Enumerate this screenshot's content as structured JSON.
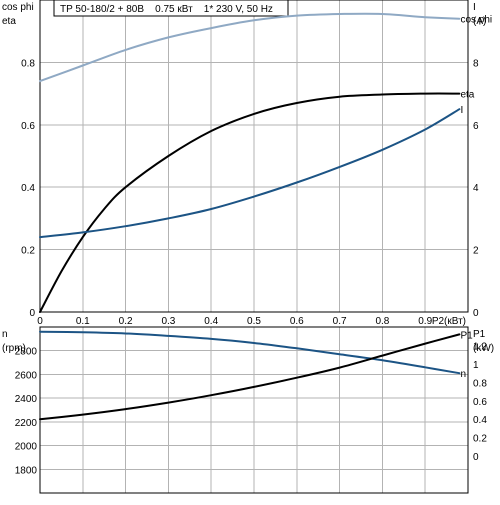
{
  "title": "TP 50-180/2 + 80B    0.75 кВт    1* 230 V, 50 Hz",
  "colors": {
    "cosphi": "#8fa9c4",
    "eta": "#000000",
    "current": "#1c5485",
    "speed": "#1c5485",
    "p1": "#000000",
    "grid": "#b3b3b3"
  },
  "chart_data": [
    {
      "type": "line",
      "x_label": "P2(кВт)",
      "x_ticks": [
        "0",
        "0.1",
        "0.2",
        "0.3",
        "0.4",
        "0.5",
        "0.6",
        "0.7",
        "0.8",
        "0.9"
      ],
      "x_range": [
        0,
        1.0
      ],
      "left_axis": {
        "labels": [
          "cos phi",
          "eta"
        ],
        "ticks": [
          "0",
          "0.2",
          "0.4",
          "0.6",
          "0.8"
        ],
        "range": [
          0,
          1.0
        ]
      },
      "right_axis": {
        "labels": [
          "I",
          "(A)"
        ],
        "ticks": [
          "0",
          "2",
          "4",
          "6",
          "8"
        ],
        "range": [
          0,
          10
        ]
      },
      "grid": true,
      "series": [
        {
          "name": "cos phi",
          "axis": "left",
          "x": [
            0,
            0.1,
            0.2,
            0.3,
            0.4,
            0.5,
            0.6,
            0.7,
            0.8,
            0.9,
            0.98
          ],
          "y": [
            0.74,
            0.79,
            0.84,
            0.88,
            0.91,
            0.935,
            0.95,
            0.955,
            0.955,
            0.945,
            0.94
          ]
        },
        {
          "name": "eta",
          "axis": "left",
          "x": [
            0,
            0.05,
            0.1,
            0.15,
            0.2,
            0.3,
            0.4,
            0.5,
            0.6,
            0.7,
            0.8,
            0.9,
            0.98
          ],
          "y": [
            0,
            0.13,
            0.24,
            0.33,
            0.4,
            0.5,
            0.58,
            0.635,
            0.67,
            0.69,
            0.697,
            0.7,
            0.7
          ]
        },
        {
          "name": "I",
          "axis": "right",
          "x": [
            0,
            0.1,
            0.2,
            0.3,
            0.4,
            0.5,
            0.6,
            0.7,
            0.8,
            0.9,
            0.98
          ],
          "y": [
            2.4,
            2.55,
            2.75,
            3.0,
            3.3,
            3.7,
            4.15,
            4.65,
            5.2,
            5.85,
            6.5
          ]
        }
      ]
    },
    {
      "type": "line",
      "left_axis": {
        "labels": [
          "n",
          "(rpm)"
        ],
        "ticks": [
          "1800",
          "2000",
          "2200",
          "2400",
          "2600",
          "2800"
        ],
        "range": [
          1600,
          3000
        ]
      },
      "right_axis": {
        "labels": [
          "P1",
          "(kW)"
        ],
        "ticks": [
          "0",
          "0.2",
          "0.4",
          "0.6",
          "0.8",
          "1",
          "1.2"
        ],
        "range": [
          -0.4,
          1.4
        ]
      },
      "grid": true,
      "series": [
        {
          "name": "n",
          "axis": "left",
          "x": [
            0,
            0.1,
            0.2,
            0.3,
            0.4,
            0.5,
            0.6,
            0.7,
            0.8,
            0.9,
            0.98
          ],
          "y": [
            2960,
            2955,
            2945,
            2925,
            2900,
            2865,
            2820,
            2770,
            2720,
            2660,
            2610
          ]
        },
        {
          "name": "P1",
          "axis": "right",
          "x": [
            0,
            0.1,
            0.2,
            0.3,
            0.4,
            0.5,
            0.6,
            0.7,
            0.8,
            0.9,
            0.98
          ],
          "y": [
            0.4,
            0.45,
            0.51,
            0.58,
            0.66,
            0.75,
            0.85,
            0.96,
            1.09,
            1.22,
            1.32
          ]
        }
      ]
    }
  ]
}
